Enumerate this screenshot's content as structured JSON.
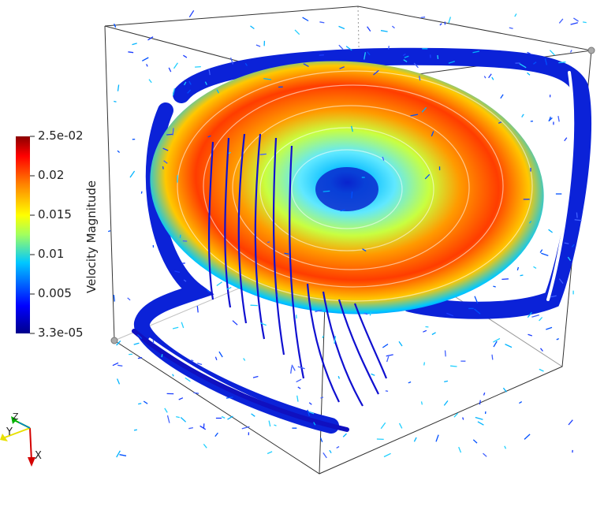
{
  "scalar_bar": {
    "title": "Velocity Magnitude",
    "ticks": [
      "2.5e-02",
      "0.02",
      "0.015",
      "0.01",
      "0.005",
      "3.3e-05"
    ],
    "range": [
      3.3e-05,
      0.025
    ],
    "colormap": [
      "#00008b",
      "#0000ff",
      "#00c8ff",
      "#a0ff60",
      "#ffff00",
      "#ff8000",
      "#ff0000",
      "#8b0000"
    ]
  },
  "orientation_axes": {
    "x_label": "X",
    "y_label": "Y",
    "z_label": "Z",
    "colors": {
      "x": "#d40000",
      "y": "#e8e000",
      "z": "#00b000"
    }
  },
  "scene": {
    "background": "#ffffff",
    "outline_color": "#333333",
    "vortex": "large recirculating vortex with streamlines and velocity glyphs inside a cube"
  }
}
